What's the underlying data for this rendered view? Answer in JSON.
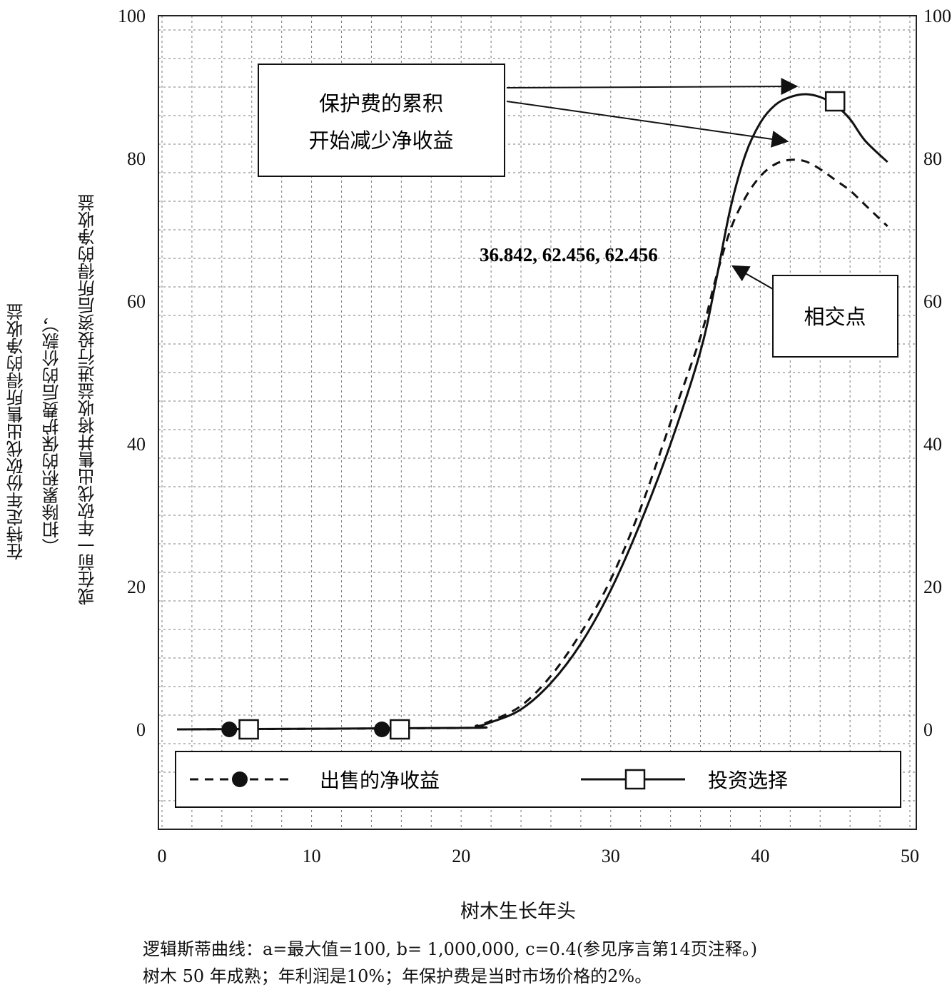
{
  "chart_data": {
    "type": "line",
    "xlim": [
      0,
      50
    ],
    "ylim": [
      -14,
      100
    ],
    "x_ticks": [
      "0",
      "10",
      "20",
      "30",
      "40",
      "50"
    ],
    "y_ticks_left": [
      "0",
      "20",
      "40",
      "60",
      "80",
      "100"
    ],
    "y_ticks_right": [
      "0",
      "20",
      "40",
      "60",
      "80",
      "100"
    ],
    "xlabel": "树木生长年头",
    "ylabel_lines": [
      "在特定年份砍伐出售所得的净收益",
      "（扣除累积的保护费后的价款），",
      "或在前一年砍伐出售并将收益进行投资后所得的净收益"
    ],
    "grid": true,
    "series": [
      {
        "name": "出售的净收益",
        "style": "dashed",
        "marker": "filled-circle",
        "marker_points": [
          [
            4.5,
            0
          ],
          [
            14.7,
            0
          ]
        ],
        "points": [
          [
            1,
            0
          ],
          [
            20,
            0.2
          ],
          [
            21,
            0.5
          ],
          [
            22,
            1.2
          ],
          [
            24,
            3.3
          ],
          [
            26,
            7.5
          ],
          [
            28,
            13.5
          ],
          [
            30,
            21
          ],
          [
            32,
            31
          ],
          [
            34,
            43
          ],
          [
            36,
            55
          ],
          [
            37,
            63
          ],
          [
            38,
            70
          ],
          [
            39,
            74.5
          ],
          [
            40,
            77.5
          ],
          [
            41,
            79.2
          ],
          [
            42,
            79.8
          ],
          [
            43,
            79.6
          ],
          [
            44,
            78.5
          ],
          [
            45,
            77
          ],
          [
            46,
            75.5
          ],
          [
            47,
            73.5
          ],
          [
            48.5,
            70.5
          ]
        ]
      },
      {
        "name": "投资选择",
        "style": "solid",
        "marker": "open-square",
        "marker_points": [
          [
            5.8,
            0
          ],
          [
            15.9,
            0
          ],
          [
            45,
            88
          ]
        ],
        "points": [
          [
            1,
            0
          ],
          [
            20,
            0.2
          ],
          [
            21,
            0.4
          ],
          [
            22,
            1.0
          ],
          [
            24,
            2.8
          ],
          [
            26,
            6.5
          ],
          [
            28,
            12
          ],
          [
            30,
            19.5
          ],
          [
            32,
            29
          ],
          [
            34,
            40
          ],
          [
            36,
            53
          ],
          [
            37,
            62.456
          ],
          [
            38,
            73
          ],
          [
            39,
            80.5
          ],
          [
            40,
            85
          ],
          [
            41,
            87.5
          ],
          [
            42,
            88.6
          ],
          [
            43,
            89
          ],
          [
            44,
            88.6
          ],
          [
            45,
            87.5
          ],
          [
            46,
            85.5
          ],
          [
            47,
            82.5
          ],
          [
            48.5,
            79.5
          ]
        ]
      }
    ],
    "annotations": [
      {
        "name": "accumulation",
        "lines": [
          "保护费的累积",
          "开始减少净收益"
        ]
      },
      {
        "name": "intersection",
        "lines": [
          "相交点"
        ]
      },
      {
        "name": "coords",
        "lines": [
          "36.842, 62.456, 62.456"
        ]
      }
    ],
    "legend_placement": "bottom"
  },
  "caption": {
    "line1": "逻辑斯蒂曲线：a=最大值=100, b= 1,000,000, c=0.4(参见序言第14页注释。)",
    "line2": "树木 50 年成熟；年利润是10%；年保护费是当时市场价格的2%。"
  }
}
